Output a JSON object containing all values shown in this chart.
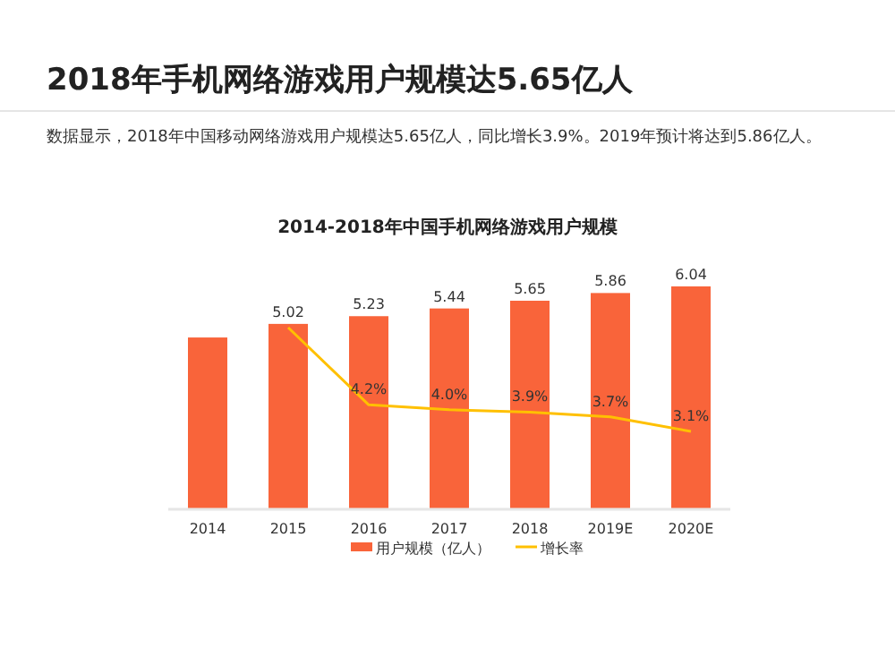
{
  "chart_data": {
    "type": "bar",
    "title": "2018年手机网络游戏用户规模达5.65亿人",
    "subtitle": "2014-2018年中国手机网络游戏用户规模",
    "annotations": [
      "数据显示，2018年中国移动网络游戏用户规模达5.65亿人，同比增长3.9%。2019年预计将达到5.86亿人。"
    ],
    "categories": [
      "2014",
      "2015",
      "2016",
      "2017",
      "2018",
      "2019E",
      "2020E"
    ],
    "series": [
      {
        "name": "用户规模（亿人）",
        "color": "#f9643a",
        "values": [
          4.65,
          5.02,
          5.23,
          5.44,
          5.65,
          5.86,
          6.04
        ],
        "value_labels": [
          null,
          "5.02",
          "5.23",
          "5.44",
          "5.65",
          "5.86",
          "6.04"
        ]
      },
      {
        "name": "增长率",
        "type": "line",
        "axis": "y2",
        "color": "#ffc000",
        "values": [
          null,
          7.4,
          4.2,
          4.0,
          3.9,
          3.7,
          3.1
        ],
        "value_labels": [
          null,
          null,
          "4.2%",
          "4.0%",
          "3.9%",
          "3.7%",
          "3.1%"
        ]
      }
    ],
    "legend": "bottom"
  }
}
